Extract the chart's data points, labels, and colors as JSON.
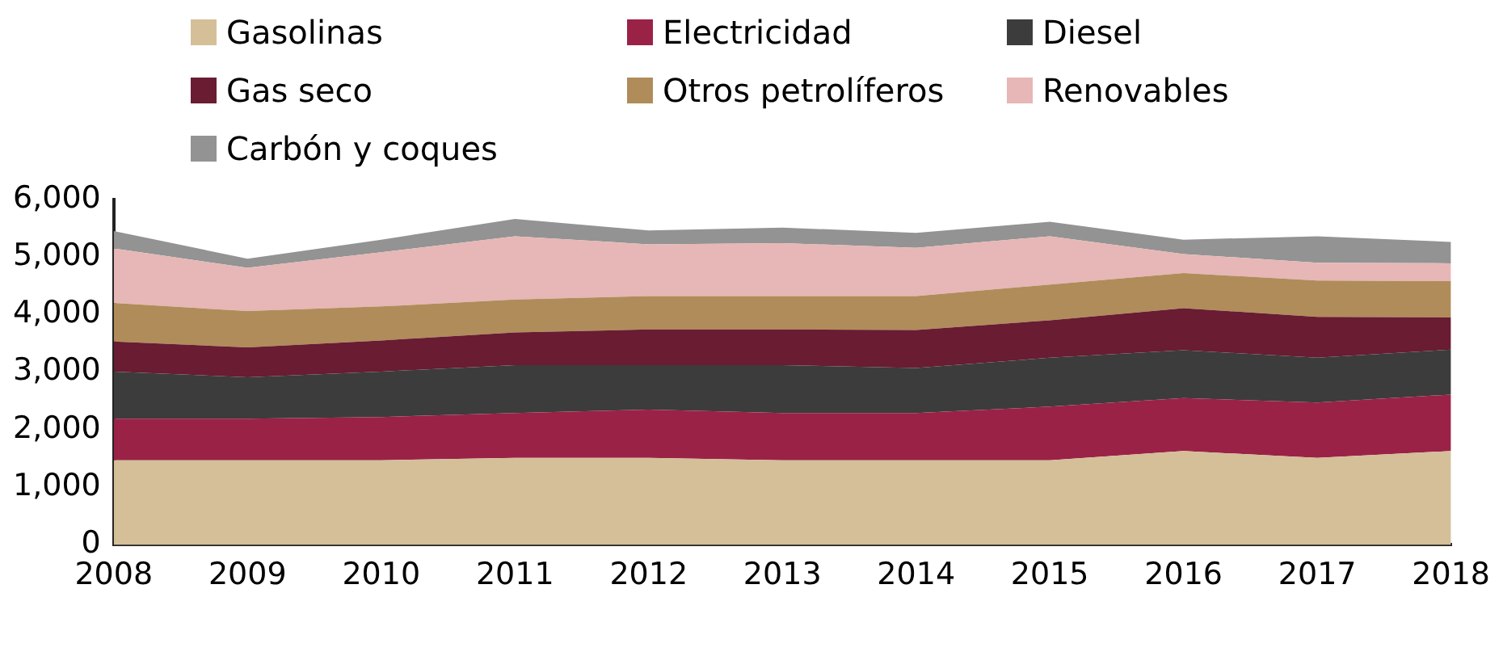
{
  "chart_data": {
    "type": "area",
    "stacked": true,
    "legend": "top",
    "grid": false,
    "categories": [
      "2008",
      "2009",
      "2010",
      "2011",
      "2012",
      "2013",
      "2014",
      "2015",
      "2016",
      "2017",
      "2018"
    ],
    "ylim": [
      0,
      6000
    ],
    "yticks": [
      {
        "value": 0,
        "label": "0"
      },
      {
        "value": 1000,
        "label": "1,000"
      },
      {
        "value": 2000,
        "label": "2,000"
      },
      {
        "value": 3000,
        "label": "3,000"
      },
      {
        "value": 4000,
        "label": "4,000"
      },
      {
        "value": 5000,
        "label": "5,000"
      },
      {
        "value": 6000,
        "label": "6,000"
      }
    ],
    "series": [
      {
        "name": "Gasolinas",
        "color": "#d4bf98",
        "values": [
          1470,
          1470,
          1470,
          1510,
          1510,
          1470,
          1470,
          1470,
          1630,
          1510,
          1630
        ]
      },
      {
        "name": "Electricidad",
        "color": "#9b2247",
        "values": [
          720,
          720,
          750,
          780,
          840,
          820,
          820,
          930,
          920,
          960,
          980
        ]
      },
      {
        "name": "Diesel",
        "color": "#3c3c3c",
        "values": [
          820,
          720,
          790,
          830,
          770,
          830,
          780,
          850,
          830,
          780,
          780
        ]
      },
      {
        "name": "Gas seco",
        "color": "#691c32",
        "values": [
          520,
          520,
          540,
          570,
          620,
          620,
          660,
          650,
          730,
          710,
          560
        ]
      },
      {
        "name": "Otros petrolíferos",
        "color": "#b08c5a",
        "values": [
          670,
          630,
          590,
          570,
          580,
          580,
          590,
          620,
          610,
          630,
          630
        ]
      },
      {
        "name": "Renovables",
        "color": "#e6b7b6",
        "values": [
          950,
          750,
          940,
          1100,
          900,
          920,
          840,
          840,
          330,
          310,
          310
        ]
      },
      {
        "name": "Carbón y coques",
        "color": "#939393",
        "values": [
          300,
          160,
          220,
          300,
          240,
          270,
          260,
          250,
          250,
          460,
          370
        ]
      }
    ]
  }
}
